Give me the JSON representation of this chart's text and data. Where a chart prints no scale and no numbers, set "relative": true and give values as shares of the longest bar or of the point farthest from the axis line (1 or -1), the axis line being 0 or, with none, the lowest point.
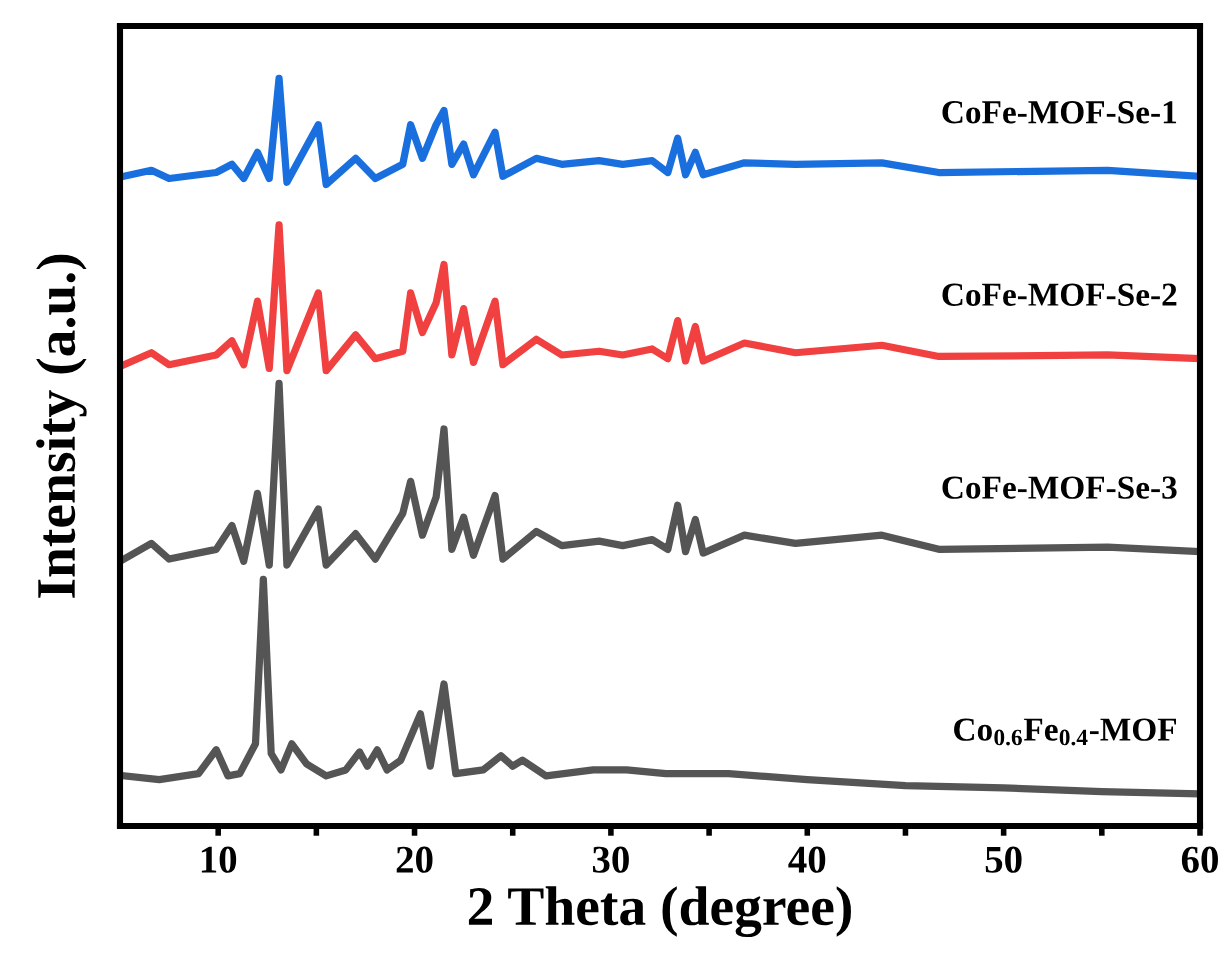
{
  "chart_data": {
    "type": "line",
    "relative": true,
    "xlabel": "2 Theta (degree)",
    "ylabel": "Intensity (a.u.)",
    "xlim": [
      5,
      60
    ],
    "xticks": [
      10,
      {
        "value": 15,
        "label": null
      },
      20,
      {
        "value": 25,
        "label": null
      },
      30,
      {
        "value": 35,
        "label": null
      },
      40,
      {
        "value": 45,
        "label": null
      },
      50,
      {
        "value": 55,
        "label": null
      },
      60
    ],
    "tick_labels": "x",
    "grid": false,
    "legend": false,
    "marker": "none",
    "line_style": "solid",
    "series": [
      {
        "name": "CoFe-MOF-Se-1",
        "color": "#1a6fdf",
        "x": [
          5.2,
          6.6,
          7.5,
          9.9,
          10.7,
          11.3,
          12.0,
          12.6,
          13.1,
          13.5,
          15.1,
          15.5,
          17.0,
          18.0,
          19.4,
          19.8,
          20.4,
          21.1,
          21.5,
          21.9,
          22.5,
          23.0,
          24.1,
          24.5,
          26.2,
          27.5,
          29.4,
          30.6,
          32.1,
          32.9,
          33.4,
          33.8,
          34.3,
          34.7,
          36.8,
          39.4,
          43.8,
          46.7,
          55.3,
          60
        ],
        "values": [
          0.869,
          0.877,
          0.866,
          0.874,
          0.885,
          0.866,
          0.901,
          0.866,
          1.0,
          0.861,
          0.938,
          0.858,
          0.893,
          0.866,
          0.885,
          0.938,
          0.893,
          0.938,
          0.957,
          0.885,
          0.912,
          0.871,
          0.928,
          0.869,
          0.893,
          0.885,
          0.89,
          0.885,
          0.89,
          0.874,
          0.92,
          0.871,
          0.901,
          0.871,
          0.887,
          0.885,
          0.887,
          0.874,
          0.877,
          0.869
        ]
      },
      {
        "name": "CoFe-MOF-Se-2",
        "color": "#f04040",
        "x": [
          5.2,
          6.6,
          7.5,
          9.9,
          10.7,
          11.3,
          12.0,
          12.6,
          13.1,
          13.5,
          15.1,
          15.5,
          17.0,
          18.0,
          19.4,
          19.8,
          20.4,
          21.1,
          21.5,
          21.9,
          22.5,
          23.0,
          24.1,
          24.5,
          26.2,
          27.5,
          29.4,
          30.6,
          32.1,
          32.9,
          33.4,
          33.8,
          34.3,
          34.7,
          36.8,
          39.4,
          43.8,
          46.7,
          55.3,
          60
        ],
        "values": [
          0.617,
          0.633,
          0.617,
          0.63,
          0.649,
          0.617,
          0.702,
          0.612,
          0.804,
          0.609,
          0.713,
          0.609,
          0.657,
          0.625,
          0.635,
          0.713,
          0.66,
          0.7,
          0.751,
          0.63,
          0.692,
          0.62,
          0.702,
          0.617,
          0.651,
          0.63,
          0.635,
          0.63,
          0.638,
          0.625,
          0.676,
          0.622,
          0.668,
          0.622,
          0.646,
          0.633,
          0.643,
          0.628,
          0.63,
          0.625
        ]
      },
      {
        "name": "CoFe-MOF-Se-3",
        "color": "#555555",
        "x": [
          5.2,
          6.6,
          7.5,
          9.9,
          10.7,
          11.3,
          12.0,
          12.6,
          13.1,
          13.5,
          15.1,
          15.5,
          17.0,
          18.0,
          19.4,
          19.8,
          20.4,
          21.1,
          21.5,
          21.9,
          22.5,
          23.0,
          24.1,
          24.5,
          26.2,
          27.5,
          29.4,
          30.6,
          32.1,
          32.9,
          33.4,
          33.8,
          34.3,
          34.7,
          36.8,
          39.4,
          43.8,
          46.7,
          55.3,
          60
        ],
        "values": [
          0.357,
          0.378,
          0.357,
          0.37,
          0.402,
          0.354,
          0.445,
          0.349,
          0.592,
          0.349,
          0.424,
          0.349,
          0.391,
          0.357,
          0.418,
          0.461,
          0.389,
          0.44,
          0.531,
          0.37,
          0.413,
          0.362,
          0.442,
          0.357,
          0.394,
          0.375,
          0.381,
          0.375,
          0.383,
          0.37,
          0.429,
          0.367,
          0.41,
          0.365,
          0.389,
          0.378,
          0.389,
          0.37,
          0.373,
          0.367
        ]
      },
      {
        "name": "Co$_{0.6}$Fe$_{0.4}$-MOF",
        "color": "#555555",
        "x": [
          5.2,
          7.0,
          9.0,
          9.9,
          10.5,
          11.1,
          11.9,
          12.3,
          12.7,
          13.2,
          13.75,
          14.5,
          15.5,
          16.5,
          17.2,
          17.6,
          18.1,
          18.6,
          19.3,
          20.3,
          20.8,
          21.5,
          22.1,
          23.5,
          24.4,
          25.0,
          25.5,
          26.7,
          29.1,
          30.8,
          32.8,
          36.0,
          40.0,
          45.0,
          50.0,
          55.0,
          60
        ],
        "values": [
          0.067,
          0.062,
          0.07,
          0.102,
          0.067,
          0.07,
          0.11,
          0.33,
          0.097,
          0.075,
          0.11,
          0.083,
          0.067,
          0.075,
          0.099,
          0.08,
          0.102,
          0.075,
          0.088,
          0.15,
          0.08,
          0.19,
          0.07,
          0.075,
          0.094,
          0.08,
          0.088,
          0.067,
          0.075,
          0.075,
          0.07,
          0.07,
          0.062,
          0.054,
          0.051,
          0.046,
          0.043
        ]
      }
    ]
  }
}
